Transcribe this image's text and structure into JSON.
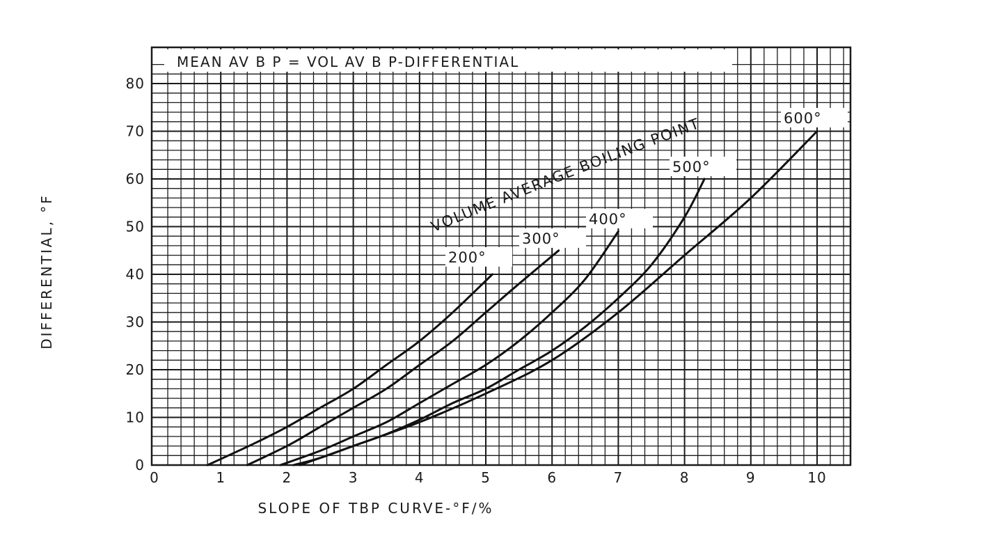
{
  "chart_data": {
    "type": "line",
    "title": "MEAN AV B P = VOL AV B P-DIFFERENTIAL",
    "xlabel": "SLOPE OF TBP CURVE-°F/%",
    "ylabel": "DIFFERENTIAL, °F",
    "xlim": [
      0,
      10.5
    ],
    "ylim": [
      0,
      85
    ],
    "xticks": [
      0,
      1,
      2,
      3,
      4,
      5,
      6,
      7,
      8,
      9,
      10
    ],
    "xtick_labels": [
      "0",
      "1",
      "2",
      "3",
      "4",
      "5",
      "6",
      "7",
      "8",
      "9",
      "10"
    ],
    "yticks": [
      0,
      10,
      20,
      30,
      40,
      50,
      60,
      70,
      80
    ],
    "ytick_labels": [
      "0",
      "10",
      "20",
      "30",
      "40",
      "50",
      "60",
      "70",
      "80"
    ],
    "grid": true,
    "annotation": "VOLUME AVERAGE BOILING POINT",
    "series": [
      {
        "name": "200°",
        "x": [
          0.8,
          1.5,
          2,
          2.5,
          3,
          3.5,
          4,
          4.5,
          5.1
        ],
        "y": [
          0,
          4.5,
          8,
          12,
          16,
          21,
          26,
          32,
          40
        ]
      },
      {
        "name": "300°",
        "x": [
          1.4,
          2,
          2.5,
          3,
          3.5,
          4,
          4.5,
          5,
          5.5,
          6.1
        ],
        "y": [
          0,
          4,
          8,
          12,
          16,
          21,
          26,
          32,
          38,
          45
        ]
      },
      {
        "name": "400°",
        "x": [
          1.9,
          2.5,
          3,
          3.5,
          4,
          4.5,
          5,
          5.5,
          6,
          6.5,
          7
        ],
        "y": [
          0,
          3,
          6,
          9,
          13,
          17,
          21,
          26,
          32,
          39,
          49
        ]
      },
      {
        "name": "500°",
        "x": [
          2.1,
          2.5,
          3,
          3.5,
          4,
          4.5,
          5,
          5.5,
          6,
          6.5,
          7,
          7.5,
          8,
          8.3
        ],
        "y": [
          0,
          1.5,
          4,
          6.5,
          9.5,
          13,
          16,
          20,
          24,
          29,
          35,
          42,
          52,
          60
        ]
      },
      {
        "name": "600°",
        "x": [
          2.2,
          3,
          4,
          5,
          6,
          7,
          8,
          9,
          10
        ],
        "y": [
          0,
          4,
          9,
          15,
          22,
          32,
          44,
          56,
          70
        ]
      }
    ]
  }
}
